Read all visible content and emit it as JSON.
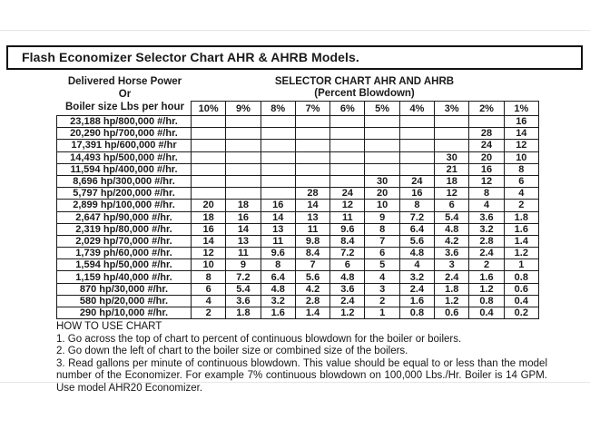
{
  "title": "Flash Economizer Selector Chart AHR & AHRB Models.",
  "left_header": {
    "line1": "Delivered Horse Power",
    "line2": "Or",
    "line3": "Boiler size Lbs per hour"
  },
  "right_header": {
    "line1": "SELECTOR CHART AHR AND AHRB",
    "line2": "(Percent Blowdown)"
  },
  "chart_data": {
    "type": "table",
    "title": "Selector Chart AHR and AHRB (Percent Blowdown)",
    "columns": [
      "10%",
      "9%",
      "8%",
      "7%",
      "6%",
      "5%",
      "4%",
      "3%",
      "2%",
      "1%"
    ],
    "row_label_meaning": "Delivered Horse Power or Boiler size Lbs per hour",
    "cell_value_meaning": "Gallons per minute of continuous blowdown",
    "rows": [
      {
        "label": "23,188 hp/800,000 #/hr.",
        "values": [
          "",
          "",
          "",
          "",
          "",
          "",
          "",
          "",
          "",
          "16"
        ]
      },
      {
        "label": "20,290 hp/700,000 #/hr.",
        "values": [
          "",
          "",
          "",
          "",
          "",
          "",
          "",
          "",
          "28",
          "14"
        ]
      },
      {
        "label": "17,391 hp/600,000 #/hr",
        "values": [
          "",
          "",
          "",
          "",
          "",
          "",
          "",
          "",
          "24",
          "12"
        ]
      },
      {
        "label": "14,493 hp/500,000 #/hr.",
        "values": [
          "",
          "",
          "",
          "",
          "",
          "",
          "",
          "30",
          "20",
          "10"
        ]
      },
      {
        "label": "11,594 hp/400,000 #/hr.",
        "values": [
          "",
          "",
          "",
          "",
          "",
          "",
          "",
          "21",
          "16",
          "8"
        ]
      },
      {
        "label": "8,696 hp/300,000 #/hr.",
        "values": [
          "",
          "",
          "",
          "",
          "",
          "30",
          "24",
          "18",
          "12",
          "6"
        ]
      },
      {
        "label": "5,797 hp/200,000 #/hr.",
        "values": [
          "",
          "",
          "",
          "28",
          "24",
          "20",
          "16",
          "12",
          "8",
          "4"
        ]
      },
      {
        "label": "2,899 hp/100,000 #/hr.",
        "values": [
          "20",
          "18",
          "16",
          "14",
          "12",
          "10",
          "8",
          "6",
          "4",
          "2"
        ]
      },
      {
        "label": "2,647 hp/90,000 #/hr.",
        "values": [
          "18",
          "16",
          "14",
          "13",
          "11",
          "9",
          "7.2",
          "5.4",
          "3.6",
          "1.8"
        ]
      },
      {
        "label": "2,319 hp/80,000 #/hr.",
        "values": [
          "16",
          "14",
          "13",
          "11",
          "9.6",
          "8",
          "6.4",
          "4.8",
          "3.2",
          "1.6"
        ]
      },
      {
        "label": "2,029 hp/70,000 #/hr.",
        "values": [
          "14",
          "13",
          "11",
          "9.8",
          "8.4",
          "7",
          "5.6",
          "4.2",
          "2.8",
          "1.4"
        ]
      },
      {
        "label": "1,739 ph/60,000 #/hr.",
        "values": [
          "12",
          "11",
          "9.6",
          "8.4",
          "7.2",
          "6",
          "4.8",
          "3.6",
          "2.4",
          "1.2"
        ]
      },
      {
        "label": "1,594 hp/50,000 #/hr.",
        "values": [
          "10",
          "9",
          "8",
          "7",
          "6",
          "5",
          "4",
          "3",
          "2",
          "1"
        ]
      },
      {
        "label": "1,159 hp/40,000 #/hr.",
        "values": [
          "8",
          "7.2",
          "6.4",
          "5.6",
          "4.8",
          "4",
          "3.2",
          "2.4",
          "1.6",
          "0.8"
        ]
      },
      {
        "label": "870 hp/30,000 #/hr.",
        "values": [
          "6",
          "5.4",
          "4.8",
          "4.2",
          "3.6",
          "3",
          "2.4",
          "1.8",
          "1.2",
          "0.6"
        ]
      },
      {
        "label": "580 hp/20,000 #/hr.",
        "values": [
          "4",
          "3.6",
          "3.2",
          "2.8",
          "2.4",
          "2",
          "1.6",
          "1.2",
          "0.8",
          "0.4"
        ]
      },
      {
        "label": "290 hp/10,000 #/hr.",
        "values": [
          "2",
          "1.8",
          "1.6",
          "1.4",
          "1.2",
          "1",
          "0.8",
          "0.6",
          "0.4",
          "0.2"
        ]
      }
    ]
  },
  "how_to_use": {
    "heading": "HOW TO USE CHART",
    "steps": [
      "1. Go across the top of chart to percent of continuous blowdown for the boiler or boilers.",
      "2. Go down the left of chart to the boiler size or combined size of the boilers.",
      "3. Read gallons per minute of continuous blowdown. This value should be equal to or less than the model number of the Economizer. For example 7% continuous blowdown on 100,000 Lbs./Hr. Boiler is 14 GPM. Use model AHR20 Economizer."
    ]
  },
  "colors": {
    "text": "#1a1a1a",
    "border": "#1c1c1c",
    "background": "#ffffff"
  }
}
